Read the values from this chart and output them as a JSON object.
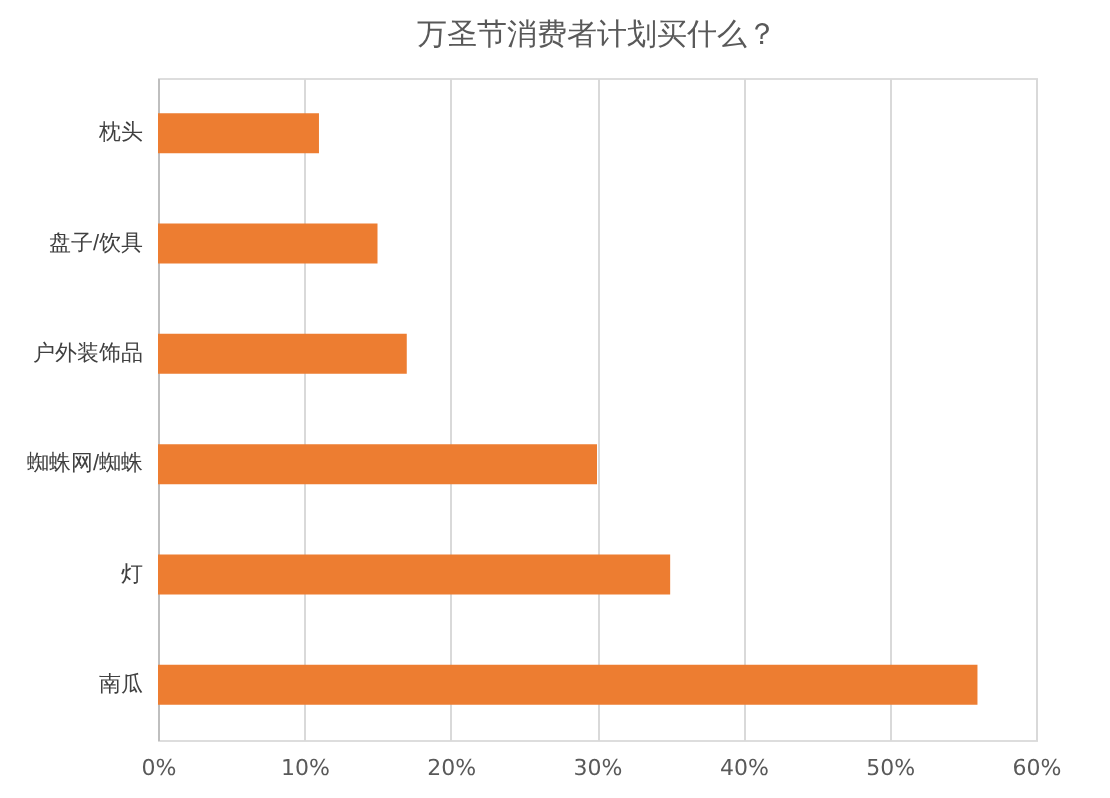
{
  "chart_data": {
    "type": "bar",
    "orientation": "horizontal",
    "title": "万圣节消费者计划买什么？",
    "categories": [
      "枕头",
      "盘子/饮具",
      "户外装饰品",
      "蜘蛛网/蜘蛛",
      "灯",
      "南瓜"
    ],
    "values": [
      11,
      15,
      17,
      30,
      35,
      56
    ],
    "color": "#ed7d31",
    "xlim": [
      0,
      60
    ],
    "xticks": [
      {
        "value": 0,
        "label": "0%"
      },
      {
        "value": 10,
        "label": "10%"
      },
      {
        "value": 20,
        "label": "20%"
      },
      {
        "value": 30,
        "label": "30%"
      },
      {
        "value": 40,
        "label": "40%"
      },
      {
        "value": 50,
        "label": "50%"
      },
      {
        "value": 60,
        "label": "60%"
      }
    ],
    "grid": "x"
  }
}
